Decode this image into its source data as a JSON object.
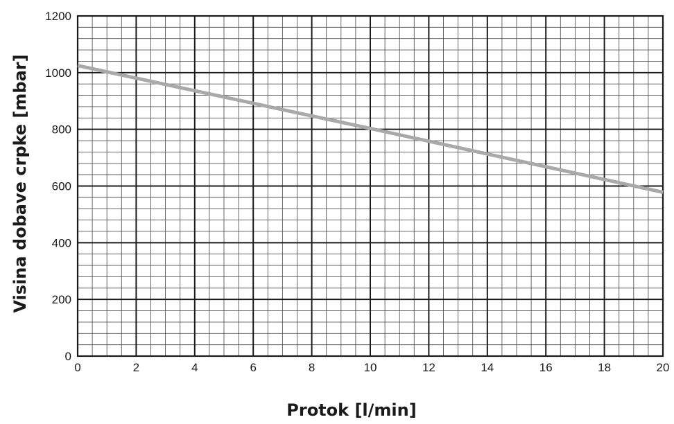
{
  "chart_data": {
    "type": "line",
    "title": "",
    "xlabel": "Protok [l/min]",
    "ylabel": "Visina dobave crpke [mbar]",
    "xlim": [
      0,
      20
    ],
    "ylim": [
      0,
      1200
    ],
    "xticks": [
      0,
      2,
      4,
      6,
      8,
      10,
      12,
      14,
      16,
      18,
      20
    ],
    "yticks": [
      0,
      200,
      400,
      600,
      800,
      1000,
      1200
    ],
    "grid": true,
    "grid_minor_x": 0.5,
    "grid_minor_y": 40,
    "legend": "none",
    "series": [
      {
        "x": [
          0,
          10,
          20
        ],
        "y": [
          1025,
          803,
          578
        ]
      }
    ],
    "colors": {
      "line": "#a9a9a9",
      "major_grid": "#1a1a1a",
      "minor_grid": "#555555",
      "text": "#1a1a1a"
    }
  }
}
